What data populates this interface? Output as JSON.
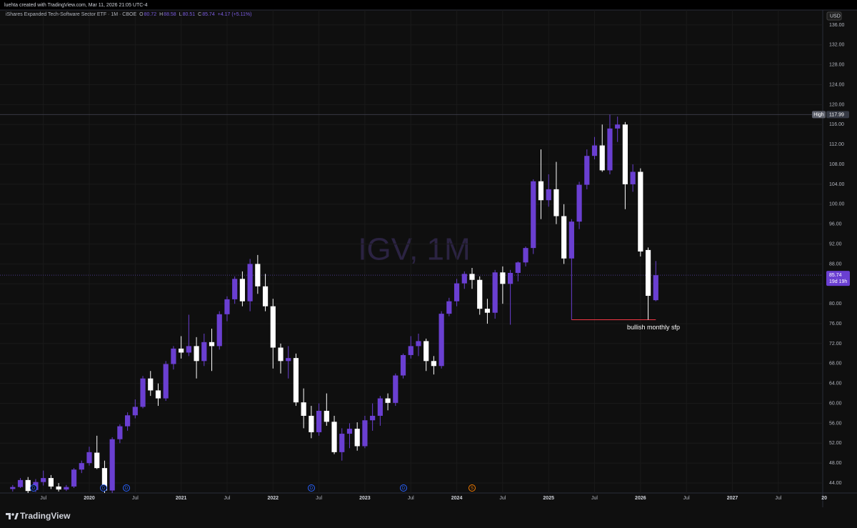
{
  "header": "luehta created with TradingView.com, Mar 11, 2026 21:05 UTC-4",
  "logo": "TradingView",
  "chart_data": {
    "type": "candlestick",
    "symbol": "iShares Expanded Tech-Software Sector ETF · 1M · CBOE",
    "legend_labels": [
      "O",
      "H",
      "L",
      "C"
    ],
    "change": "+4.17 (+5.11%)",
    "watermark": "IGV, 1M",
    "currency": "USD",
    "high_label": "High",
    "countdown": "19d 19h",
    "annotation": "bullish monthly sfp",
    "markers": [
      "D",
      "D",
      "D",
      "D",
      "D",
      "S"
    ],
    "up_color": "#6a3fd1",
    "down_color": "#ffffff",
    "grid": true,
    "categories": [
      null,
      null,
      null,
      null,
      "Jul",
      null,
      null,
      null,
      null,
      null,
      "2020",
      null,
      null,
      null,
      null,
      null,
      "Jul",
      null,
      null,
      null,
      null,
      null,
      "2021",
      null,
      null,
      null,
      null,
      null,
      "Jul",
      null,
      null,
      null,
      null,
      null,
      "2022",
      null,
      null,
      null,
      null,
      null,
      "Jul",
      null,
      null,
      null,
      null,
      null,
      "2023",
      null,
      null,
      null,
      null,
      null,
      "Jul",
      null,
      null,
      null,
      null,
      null,
      "2024",
      null,
      null,
      null,
      null,
      null,
      "Jul",
      null,
      null,
      null,
      null,
      null,
      "2025",
      null,
      null,
      null,
      null,
      null,
      "Jul",
      null,
      null,
      null,
      null,
      null,
      "2026",
      null,
      null,
      null,
      null,
      null,
      "Jul",
      null,
      null,
      null,
      null,
      null,
      "2027",
      null,
      null,
      null,
      null,
      null,
      "Jul",
      null,
      null,
      null,
      null,
      null,
      "20"
    ],
    "open": [
      42.8,
      43.2,
      44.6,
      42.6,
      44.2,
      45.0,
      43.3,
      42.7,
      43.3,
      46.7,
      48.0,
      50.1,
      47.0,
      42.5,
      52.8,
      55.4,
      57.6,
      59.3,
      65.0,
      62.6,
      61.0,
      67.9,
      71.0,
      70.2,
      71.5,
      68.5,
      72.3,
      71.5,
      77.9,
      80.9,
      85.0,
      80.5,
      88.0,
      83.5,
      79.5,
      71.2,
      68.5,
      69.1,
      60.2,
      57.5,
      54.2,
      58.5,
      56.3,
      50.2,
      53.9,
      54.9,
      51.4,
      56.6,
      57.5,
      61.0,
      60.1,
      65.6,
      69.7,
      71.5,
      72.5,
      68.5,
      67.5,
      78.0,
      80.5,
      84.1,
      86.0,
      84.8,
      79.0,
      78.2,
      86.3,
      84.0,
      86.2,
      88.3,
      91.2,
      104.6,
      100.8,
      103.0,
      97.6,
      89.1,
      96.5,
      103.9,
      109.7,
      111.8,
      106.8,
      115.2,
      116.0,
      104.0,
      106.5,
      90.8,
      80.72,
      null,
      null,
      null,
      null,
      null,
      null,
      null,
      null,
      null,
      null,
      null,
      null,
      null,
      null,
      null,
      null,
      null,
      null,
      null,
      null,
      null,
      null
    ],
    "high": [
      43.6,
      45.0,
      45.2,
      44.8,
      46.5,
      45.6,
      44.0,
      43.6,
      47.0,
      48.5,
      51.3,
      53.5,
      48.5,
      53.2,
      55.8,
      58.2,
      60.8,
      65.5,
      66.5,
      64.0,
      68.5,
      71.5,
      73.5,
      77.8,
      73.3,
      74.0,
      75.0,
      78.5,
      81.5,
      85.5,
      86.5,
      89.0,
      89.8,
      86.0,
      81.0,
      72.0,
      71.5,
      70.0,
      63.0,
      59.5,
      60.0,
      62.0,
      57.5,
      55.0,
      56.0,
      56.2,
      57.5,
      60.0,
      61.5,
      62.0,
      66.0,
      70.0,
      73.5,
      74.0,
      73.0,
      69.5,
      78.5,
      81.2,
      85.0,
      86.5,
      87.2,
      85.5,
      81.0,
      86.8,
      87.5,
      86.8,
      88.5,
      91.5,
      105.0,
      111.0,
      106.0,
      108.5,
      100.0,
      97.0,
      104.5,
      111.0,
      113.5,
      116.0,
      117.99,
      117.6,
      116.5,
      108.0,
      107.2,
      91.3,
      88.58,
      null,
      null,
      null,
      null,
      null,
      null,
      null,
      null,
      null,
      null,
      null,
      null,
      null,
      null,
      null,
      null,
      null,
      null,
      null,
      null,
      null,
      null
    ],
    "low": [
      42.3,
      43.0,
      42.0,
      42.2,
      43.5,
      42.8,
      42.3,
      42.4,
      43.0,
      46.0,
      47.5,
      46.8,
      40.0,
      41.5,
      52.0,
      54.5,
      57.0,
      59.0,
      61.5,
      59.5,
      60.5,
      66.8,
      69.0,
      69.5,
      65.0,
      67.5,
      66.5,
      70.8,
      76.5,
      80.0,
      79.5,
      78.5,
      82.0,
      78.5,
      67.0,
      66.0,
      65.0,
      59.5,
      55.0,
      53.0,
      53.5,
      55.5,
      49.8,
      48.5,
      51.0,
      50.5,
      51.0,
      54.5,
      55.5,
      58.6,
      59.5,
      65.0,
      69.0,
      69.5,
      66.5,
      65.8,
      67.0,
      77.5,
      79.5,
      83.0,
      83.0,
      77.8,
      76.0,
      77.0,
      80.0,
      75.8,
      84.5,
      87.5,
      90.0,
      97.0,
      99.5,
      96.0,
      88.0,
      86.0,
      95.0,
      103.0,
      109.0,
      106.5,
      106.0,
      112.5,
      99.0,
      102.5,
      89.5,
      76.8,
      80.51,
      null,
      null,
      null,
      null,
      null,
      null,
      null,
      null,
      null,
      null,
      null,
      null,
      null,
      null,
      null,
      null,
      null,
      null,
      null,
      null,
      null,
      null
    ],
    "close": [
      43.2,
      44.6,
      42.4,
      44.2,
      45.0,
      43.3,
      42.7,
      43.2,
      46.7,
      48.0,
      50.2,
      47.0,
      42.5,
      52.8,
      55.4,
      57.6,
      59.3,
      65.0,
      62.6,
      61.0,
      67.9,
      71.0,
      70.2,
      71.5,
      68.5,
      72.3,
      71.5,
      77.9,
      80.9,
      85.0,
      80.5,
      88.0,
      83.5,
      79.5,
      71.2,
      68.5,
      69.1,
      60.2,
      57.5,
      54.2,
      58.5,
      56.3,
      50.2,
      53.9,
      54.9,
      51.4,
      56.6,
      57.5,
      61.0,
      60.1,
      65.6,
      69.7,
      71.5,
      72.5,
      68.5,
      67.5,
      78.0,
      80.5,
      84.1,
      86.0,
      84.8,
      79.0,
      78.2,
      86.3,
      84.0,
      86.2,
      88.3,
      91.2,
      104.6,
      100.8,
      103.0,
      97.6,
      89.1,
      96.5,
      103.9,
      109.7,
      111.8,
      106.8,
      115.2,
      116.0,
      104.0,
      106.5,
      90.5,
      81.6,
      85.74,
      null,
      null,
      null,
      null,
      null,
      null,
      null,
      null,
      null,
      null,
      null,
      null,
      null,
      null,
      null,
      null,
      null,
      null,
      null,
      null,
      null,
      null
    ],
    "ylim": [
      42,
      139
    ],
    "yticks": [
      {
        "value": 44,
        "label": "44.00"
      },
      {
        "value": 48,
        "label": "48.00"
      },
      {
        "value": 52,
        "label": "52.00"
      },
      {
        "value": 56,
        "label": "56.00"
      },
      {
        "value": 60,
        "label": "60.00"
      },
      {
        "value": 64,
        "label": "64.00"
      },
      {
        "value": 68,
        "label": "68.00"
      },
      {
        "value": 72,
        "label": "72.00"
      },
      {
        "value": 76,
        "label": "76.00"
      },
      {
        "value": 80,
        "label": "80.00"
      },
      {
        "value": 84,
        "label": "84.00"
      },
      {
        "value": 88,
        "label": "88.00"
      },
      {
        "value": 92,
        "label": "92.00"
      },
      {
        "value": 96,
        "label": "96.00"
      },
      {
        "value": 100,
        "label": "100.00"
      },
      {
        "value": 104,
        "label": "104.00"
      },
      {
        "value": 108,
        "label": "108.00"
      },
      {
        "value": 112,
        "label": "112.00"
      },
      {
        "value": 116,
        "label": "116.00"
      },
      {
        "value": 120,
        "label": "120.00"
      },
      {
        "value": 124,
        "label": "124.00"
      },
      {
        "value": 128,
        "label": "128.00"
      },
      {
        "value": 132,
        "label": "132.00"
      },
      {
        "value": 136,
        "label": "136.00"
      }
    ]
  }
}
